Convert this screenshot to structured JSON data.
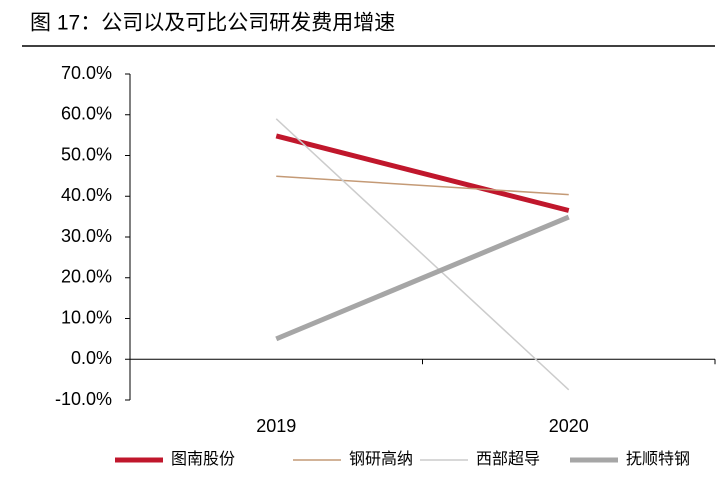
{
  "chart_data": {
    "type": "line",
    "title": "图 17：公司以及可比公司研发费用增速",
    "categories": [
      "2019",
      "2020"
    ],
    "series": [
      {
        "name": "图南股份",
        "color": "#c0172c",
        "width": 5,
        "values": [
          54.8,
          36.5
        ]
      },
      {
        "name": "钢研高纳",
        "color": "#c49a76",
        "width": 1.5,
        "values": [
          44.9,
          40.4
        ]
      },
      {
        "name": "西部超导",
        "color": "#cccccc",
        "width": 1.5,
        "values": [
          59.0,
          -7.5
        ]
      },
      {
        "name": "抚顺特钢",
        "color": "#a6a6a6",
        "width": 5,
        "values": [
          5.0,
          34.9
        ]
      }
    ],
    "ylim": [
      -10,
      70
    ],
    "yticks": [
      {
        "value": -10,
        "label": "-10.0%"
      },
      {
        "value": 0,
        "label": "0.0%"
      },
      {
        "value": 10,
        "label": "10.0%"
      },
      {
        "value": 20,
        "label": "20.0%"
      },
      {
        "value": 30,
        "label": "30.0%"
      },
      {
        "value": 40,
        "label": "40.0%"
      },
      {
        "value": 50,
        "label": "50.0%"
      },
      {
        "value": 60,
        "label": "60.0%"
      },
      {
        "value": 70,
        "label": "70.0%"
      }
    ]
  }
}
